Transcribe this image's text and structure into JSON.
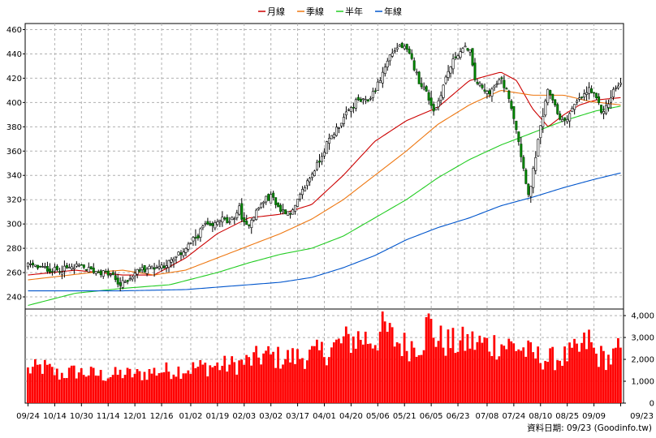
{
  "chart_data": {
    "type": "candlestick",
    "legend": [
      {
        "label": "月線",
        "color": "#cc0000"
      },
      {
        "label": "季線",
        "color": "#ee7711"
      },
      {
        "label": "半年",
        "color": "#22cc22"
      },
      {
        "label": "年線",
        "color": "#0055cc"
      }
    ],
    "legend_position": "top-center",
    "grid": true,
    "price_axis": {
      "ylim": [
        230,
        465
      ],
      "ticks": [
        240,
        260,
        280,
        300,
        320,
        340,
        360,
        380,
        400,
        420,
        440,
        460
      ]
    },
    "volume_axis": {
      "ylim": [
        0,
        4300
      ],
      "ticks": [
        0,
        1000,
        2000,
        3000,
        4000
      ],
      "tick_labels": [
        "0",
        "1,000",
        "2,000",
        "3,000",
        "4,000"
      ]
    },
    "x_tick_labels": [
      "09/24",
      "10/14",
      "10/30",
      "11/14",
      "12/01",
      "12/16",
      "01/02",
      "01/19",
      "02/03",
      "03/02",
      "03/17",
      "04/01",
      "04/20",
      "05/06",
      "05/21",
      "06/05",
      "06/23",
      "07/08",
      "07/24",
      "08/10",
      "08/25",
      "09/09",
      "09/23"
    ],
    "n_days": 245,
    "close_anchors": [
      [
        0,
        266
      ],
      [
        8,
        264
      ],
      [
        16,
        262
      ],
      [
        24,
        263
      ],
      [
        32,
        265
      ],
      [
        40,
        262
      ],
      [
        48,
        260
      ],
      [
        54,
        257
      ],
      [
        58,
        249
      ],
      [
        62,
        253
      ],
      [
        70,
        262
      ],
      [
        78,
        264
      ],
      [
        86,
        266
      ],
      [
        92,
        270
      ],
      [
        100,
        280
      ],
      [
        108,
        291
      ],
      [
        112,
        300
      ],
      [
        116,
        296
      ],
      [
        122,
        305
      ],
      [
        128,
        300
      ],
      [
        134,
        313
      ],
      [
        138,
        296
      ],
      [
        142,
        305
      ],
      [
        150,
        320
      ],
      [
        155,
        323
      ],
      [
        160,
        311
      ],
      [
        168,
        310
      ],
      [
        176,
        332
      ],
      [
        184,
        350
      ],
      [
        190,
        367
      ],
      [
        197,
        381
      ],
      [
        203,
        392
      ],
      [
        209,
        402
      ],
      [
        215,
        400
      ],
      [
        222,
        415
      ],
      [
        230,
        440
      ],
      [
        236,
        447
      ],
      [
        240,
        443
      ],
      [
        243,
        436
      ],
      [
        248,
        418
      ],
      [
        252,
        410
      ],
      [
        258,
        392
      ],
      [
        266,
        424
      ],
      [
        272,
        440
      ],
      [
        280,
        446
      ],
      [
        283,
        420
      ],
      [
        290,
        408
      ],
      [
        294,
        410
      ],
      [
        300,
        419
      ],
      [
        305,
        406
      ],
      [
        310,
        378
      ],
      [
        314,
        348
      ],
      [
        318,
        322
      ],
      [
        322,
        356
      ],
      [
        326,
        385
      ],
      [
        330,
        410
      ],
      [
        334,
        400
      ],
      [
        338,
        383
      ],
      [
        342,
        388
      ],
      [
        348,
        400
      ],
      [
        353,
        406
      ],
      [
        356,
        411
      ],
      [
        360,
        404
      ],
      [
        364,
        392
      ],
      [
        368,
        398
      ],
      [
        372,
        412
      ],
      [
        376,
        414
      ]
    ],
    "ma_anchors": {
      "月線": [
        [
          0,
          258
        ],
        [
          30,
          262
        ],
        [
          60,
          258
        ],
        [
          80,
          258
        ],
        [
          100,
          272
        ],
        [
          120,
          292
        ],
        [
          140,
          305
        ],
        [
          160,
          308
        ],
        [
          180,
          316
        ],
        [
          200,
          340
        ],
        [
          220,
          368
        ],
        [
          240,
          385
        ],
        [
          260,
          396
        ],
        [
          280,
          418
        ],
        [
          300,
          425
        ],
        [
          310,
          418
        ],
        [
          320,
          395
        ],
        [
          330,
          380
        ],
        [
          340,
          390
        ],
        [
          350,
          398
        ],
        [
          360,
          402
        ],
        [
          376,
          404
        ]
      ],
      "季線": [
        [
          0,
          254
        ],
        [
          40,
          260
        ],
        [
          60,
          262
        ],
        [
          80,
          258
        ],
        [
          100,
          262
        ],
        [
          120,
          272
        ],
        [
          140,
          282
        ],
        [
          160,
          292
        ],
        [
          180,
          304
        ],
        [
          200,
          320
        ],
        [
          220,
          340
        ],
        [
          240,
          360
        ],
        [
          260,
          382
        ],
        [
          280,
          398
        ],
        [
          300,
          410
        ],
        [
          320,
          406
        ],
        [
          340,
          406
        ],
        [
          356,
          401
        ],
        [
          376,
          398
        ]
      ],
      "半年": [
        [
          0,
          233
        ],
        [
          30,
          243
        ],
        [
          60,
          247
        ],
        [
          90,
          250
        ],
        [
          120,
          260
        ],
        [
          140,
          268
        ],
        [
          160,
          275
        ],
        [
          180,
          280
        ],
        [
          200,
          290
        ],
        [
          220,
          305
        ],
        [
          240,
          320
        ],
        [
          260,
          338
        ],
        [
          280,
          353
        ],
        [
          300,
          365
        ],
        [
          320,
          375
        ],
        [
          340,
          385
        ],
        [
          360,
          393
        ],
        [
          376,
          397
        ]
      ],
      "年線": [
        [
          0,
          245
        ],
        [
          60,
          245
        ],
        [
          100,
          246
        ],
        [
          120,
          248
        ],
        [
          160,
          252
        ],
        [
          180,
          256
        ],
        [
          200,
          264
        ],
        [
          220,
          274
        ],
        [
          240,
          287
        ],
        [
          260,
          297
        ],
        [
          280,
          305
        ],
        [
          300,
          315
        ],
        [
          320,
          322
        ],
        [
          340,
          330
        ],
        [
          360,
          337
        ],
        [
          376,
          342
        ]
      ]
    },
    "volume_anchors": [
      [
        0,
        1500
      ],
      [
        10,
        1650
      ],
      [
        20,
        1300
      ],
      [
        30,
        1450
      ],
      [
        40,
        1350
      ],
      [
        50,
        1250
      ],
      [
        60,
        1350
      ],
      [
        70,
        1300
      ],
      [
        80,
        1450
      ],
      [
        90,
        1500
      ],
      [
        100,
        1550
      ],
      [
        110,
        1650
      ],
      [
        120,
        1700
      ],
      [
        130,
        1750
      ],
      [
        140,
        1900
      ],
      [
        150,
        2200
      ],
      [
        160,
        2050
      ],
      [
        170,
        2100
      ],
      [
        180,
        2200
      ],
      [
        190,
        2400
      ],
      [
        200,
        2800
      ],
      [
        210,
        3000
      ],
      [
        220,
        2900
      ],
      [
        226,
        3400
      ],
      [
        232,
        2900
      ],
      [
        240,
        2600
      ],
      [
        250,
        2800
      ],
      [
        254,
        3700
      ],
      [
        260,
        2900
      ],
      [
        270,
        2700
      ],
      [
        280,
        2800
      ],
      [
        290,
        2700
      ],
      [
        300,
        2700
      ],
      [
        310,
        2600
      ],
      [
        320,
        2200
      ],
      [
        330,
        2000
      ],
      [
        340,
        2100
      ],
      [
        350,
        2400
      ],
      [
        356,
        2900
      ],
      [
        360,
        2200
      ],
      [
        370,
        2000
      ],
      [
        376,
        2500
      ]
    ]
  },
  "source_note": "資料日期: 09/23 (Goodinfo.tw)"
}
